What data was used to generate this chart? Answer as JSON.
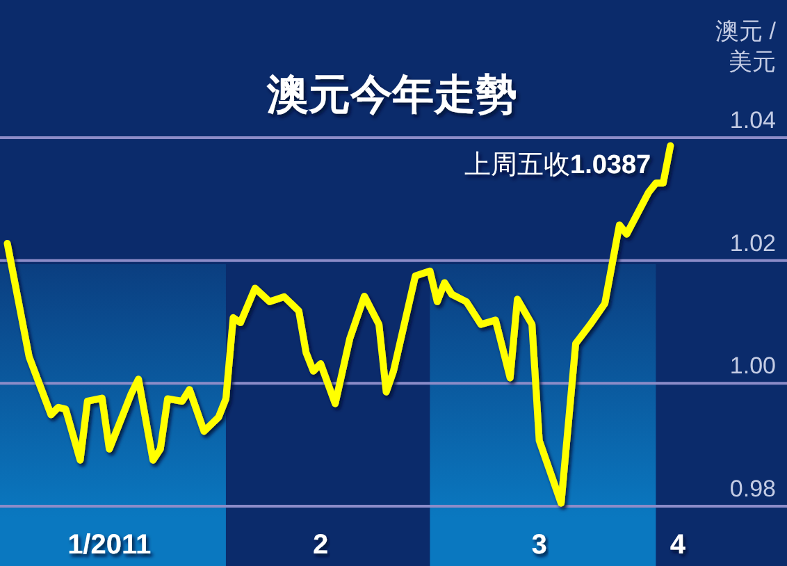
{
  "chart_data": {
    "type": "line",
    "title": "澳元今年走勢",
    "ylabel": "澳元 / 美元",
    "x": [
      "2011-01-02",
      "2011-01-05",
      "2011-01-08",
      "2011-01-09",
      "2011-01-10",
      "2011-01-12",
      "2011-01-13",
      "2011-01-15",
      "2011-01-16",
      "2011-01-19",
      "2011-01-20",
      "2011-01-22",
      "2011-01-23",
      "2011-01-24",
      "2011-01-26",
      "2011-01-27",
      "2011-01-29",
      "2011-01-31",
      "2011-02-01",
      "2011-02-02",
      "2011-02-03",
      "2011-02-05",
      "2011-02-07",
      "2011-02-09",
      "2011-02-11",
      "2011-02-12",
      "2011-02-13",
      "2011-02-14",
      "2011-02-16",
      "2011-02-18",
      "2011-02-20",
      "2011-02-22",
      "2011-02-23",
      "2011-02-24",
      "2011-02-27",
      "2011-03-01",
      "2011-03-02",
      "2011-03-03",
      "2011-03-04",
      "2011-03-06",
      "2011-03-08",
      "2011-03-10",
      "2011-03-12",
      "2011-03-13",
      "2011-03-15",
      "2011-03-16",
      "2011-03-18",
      "2011-03-19",
      "2011-03-21",
      "2011-03-23",
      "2011-03-25",
      "2011-03-27",
      "2011-03-28",
      "2011-03-31",
      "2011-04-01",
      "2011-04-02",
      "2011-04-03"
    ],
    "series": [
      {
        "color": "#ffff00",
        "values": [
          1.0228,
          1.0043,
          0.9949,
          0.9961,
          0.9958,
          0.9875,
          0.9971,
          0.9976,
          0.9893,
          0.9983,
          1.0007,
          0.9875,
          0.9893,
          0.9975,
          0.9971,
          0.999,
          0.9922,
          0.9945,
          0.9975,
          1.0107,
          1.0099,
          1.0155,
          1.0133,
          1.0141,
          1.0118,
          1.005,
          1.002,
          1.0032,
          0.9967,
          1.0073,
          1.0142,
          1.0096,
          0.9986,
          1.002,
          1.0175,
          1.0183,
          1.0133,
          1.0164,
          1.0145,
          1.0133,
          1.0096,
          1.0103,
          1.0009,
          1.0137,
          1.0096,
          0.9907,
          0.9839,
          0.9805,
          1.0065,
          1.0096,
          1.013,
          1.0258,
          1.0243,
          1.0311,
          1.0326,
          1.0326,
          1.0387
        ]
      }
    ],
    "xlim": [
      "2011-01-01",
      "2011-04-19"
    ],
    "ylim": [
      0.98,
      1.04
    ],
    "xticks": [
      {
        "value": "2011-01-16",
        "label": "1/2011"
      },
      {
        "value": "2011-02-14",
        "label": "2"
      },
      {
        "value": "2011-03-16",
        "label": "3"
      },
      {
        "value": "2011-04-04",
        "label": "4"
      }
    ],
    "yticks": [
      0.98,
      {
        "value": 1,
        "label": "1.00"
      },
      1.02,
      1.04
    ],
    "grid": "y",
    "bands": [
      {
        "axis": "x",
        "from": "2011-01-01",
        "to": "2011-02-01",
        "color": "#0a78c0"
      },
      {
        "axis": "x",
        "from": "2011-03-01",
        "to": "2011-04-01",
        "color": "#0a78c0"
      }
    ],
    "annotations": [
      {
        "text": "上周五收**1.0387**",
        "x": "2011-04-03",
        "y": 1.0387
      }
    ]
  }
}
